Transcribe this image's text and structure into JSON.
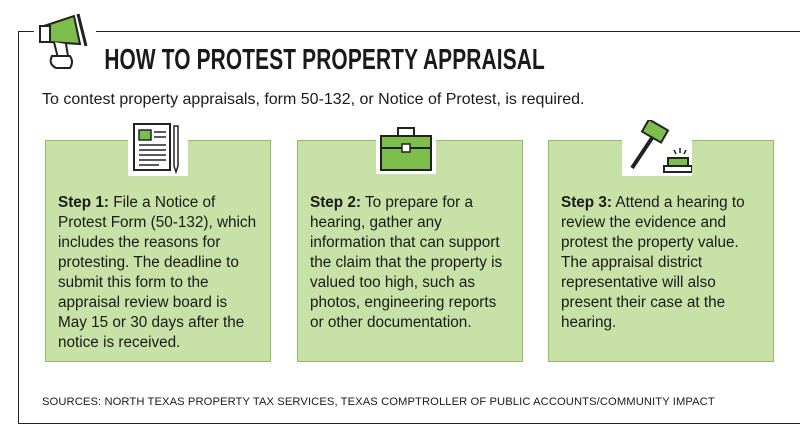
{
  "header": {
    "title": "HOW TO PROTEST PROPERTY APPRAISAL",
    "intro": "To contest property appraisals, form 50-132, or Notice of Protest, is required."
  },
  "steps": [
    {
      "label": "Step 1:",
      "text": "File a Notice of Protest Form (50-132), which includes the reasons for protesting. The deadline to submit this form to the appraisal review board is May 15 or 30 days after the notice is received."
    },
    {
      "label": "Step 2:",
      "text": "To prepare for a hearing, gather any information that can support the claim that the property is valued too high, such as photos, engineering reports or other documentation."
    },
    {
      "label": "Step 3:",
      "text": "Attend a hearing to review the evidence and protest the property value. The appraisal district representative will also present their case at the hearing."
    }
  ],
  "sources": "SOURCES: NORTH TEXAS PROPERTY TAX SERVICES, TEXAS COMPTROLLER OF PUBLIC ACCOUNTS/COMMUNITY IMPACT"
}
